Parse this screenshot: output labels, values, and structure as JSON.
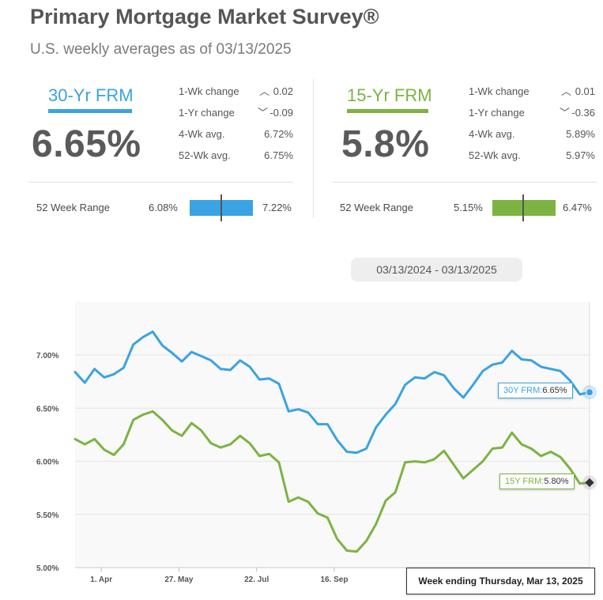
{
  "header": {
    "title": "Primary Mortgage Market Survey®",
    "subtitle": "U.S. weekly averages as of 03/13/2025"
  },
  "colors": {
    "frm30": "#3aa3e3",
    "frm15": "#7cb342"
  },
  "frm30": {
    "label": "30-Yr FRM",
    "rate": "6.65%",
    "wk_change_label": "1-Wk change",
    "wk_change_value": "0.02",
    "wk_change_dir": "up",
    "yr_change_label": "1-Yr change",
    "yr_change_value": "-0.09",
    "yr_change_dir": "down",
    "avg4_label": "4-Wk avg.",
    "avg4_value": "6.72%",
    "avg52_label": "52-Wk avg.",
    "avg52_value": "6.75%",
    "range_label": "52 Week Range",
    "range_low": "6.08%",
    "range_high": "7.22%",
    "range_current_fraction": 0.5
  },
  "frm15": {
    "label": "15-Yr FRM",
    "rate": "5.8%",
    "wk_change_label": "1-Wk change",
    "wk_change_value": "0.01",
    "wk_change_dir": "up",
    "yr_change_label": "1-Yr change",
    "yr_change_value": "-0.36",
    "yr_change_dir": "down",
    "avg4_label": "4-Wk avg.",
    "avg4_value": "5.89%",
    "avg52_label": "52-Wk avg.",
    "avg52_value": "5.97%",
    "range_label": "52 Week Range",
    "range_low": "5.15%",
    "range_high": "6.47%",
    "range_current_fraction": 0.49
  },
  "date_range": "03/13/2024 - 03/13/2025",
  "chart_data": {
    "type": "line",
    "title": "",
    "xlabel": "",
    "ylabel": "",
    "ylim": [
      5.0,
      7.5
    ],
    "y_ticks": [
      5.0,
      5.5,
      6.0,
      6.5,
      7.0
    ],
    "y_tick_labels": [
      "5.00%",
      "5.50%",
      "6.00%",
      "6.50%",
      "7.00%"
    ],
    "x_tick_labels": [
      "1. Apr",
      "27. May",
      "22. Jul",
      "16. Sep"
    ],
    "x_tick_weeks": [
      2.7,
      10.7,
      18.7,
      26.7
    ],
    "grid": true,
    "legend": "none",
    "series": [
      {
        "name": "30Y FRM",
        "values": [
          6.84,
          6.74,
          6.87,
          6.79,
          6.82,
          6.88,
          7.1,
          7.17,
          7.22,
          7.09,
          7.02,
          6.94,
          7.03,
          6.99,
          6.95,
          6.87,
          6.86,
          6.95,
          6.89,
          6.77,
          6.78,
          6.73,
          6.47,
          6.49,
          6.46,
          6.35,
          6.35,
          6.2,
          6.09,
          6.08,
          6.12,
          6.32,
          6.44,
          6.54,
          6.72,
          6.79,
          6.78,
          6.84,
          6.81,
          6.69,
          6.6,
          6.72,
          6.85,
          6.91,
          6.93,
          7.04,
          6.96,
          6.95,
          6.89,
          6.87,
          6.85,
          6.76,
          6.63,
          6.65
        ]
      },
      {
        "name": "15Y FRM",
        "values": [
          6.21,
          6.16,
          6.21,
          6.11,
          6.06,
          6.16,
          6.39,
          6.44,
          6.47,
          6.39,
          6.29,
          6.24,
          6.36,
          6.29,
          6.17,
          6.13,
          6.16,
          6.24,
          6.17,
          6.05,
          6.07,
          5.99,
          5.62,
          5.66,
          5.62,
          5.51,
          5.47,
          5.27,
          5.16,
          5.15,
          5.25,
          5.41,
          5.63,
          5.71,
          5.99,
          6.0,
          5.99,
          6.02,
          6.1,
          5.97,
          5.84,
          5.92,
          6.0,
          6.12,
          6.13,
          6.27,
          6.16,
          6.12,
          6.05,
          6.09,
          6.04,
          5.93,
          5.79,
          5.8
        ]
      }
    ]
  },
  "tooltips": {
    "frm30_key": "30Y FRM:",
    "frm30_value": "6.65%",
    "frm15_key": "15Y FRM:",
    "frm15_value": "5.80%",
    "week_ending": "Week ending Thursday, Mar 13, 2025"
  }
}
